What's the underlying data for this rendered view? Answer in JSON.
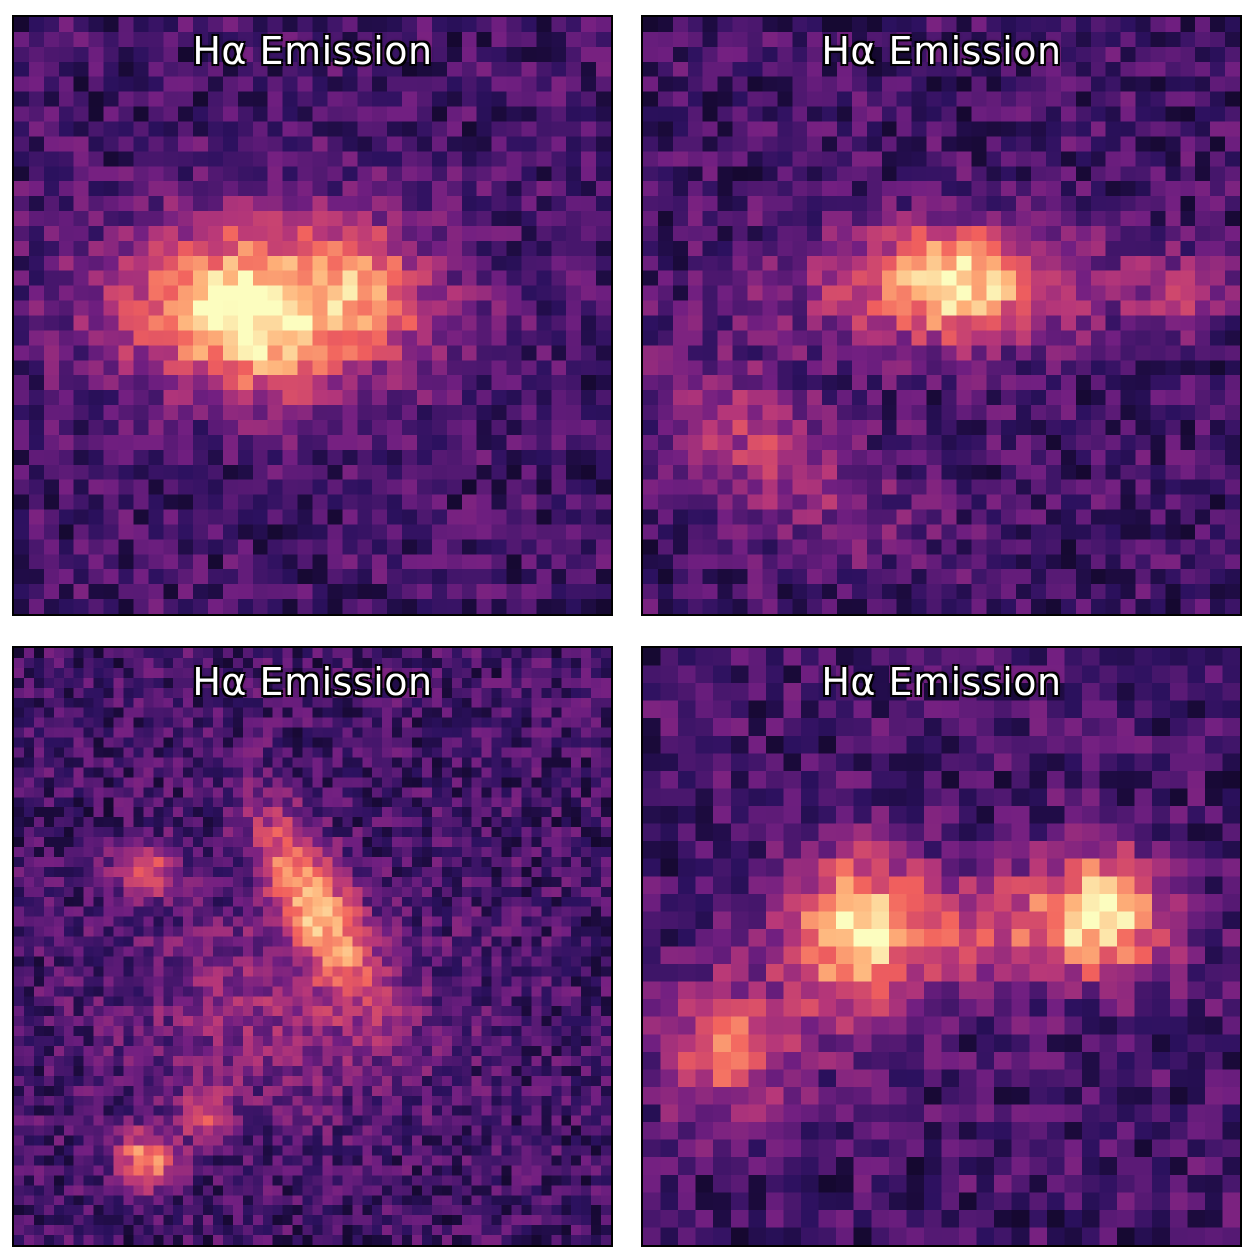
{
  "panels": [
    {
      "title": "Hα Emission"
    },
    {
      "title": "Hα Emission"
    },
    {
      "title": "Hα Emission"
    },
    {
      "title": "Hα Emission"
    }
  ],
  "colormap": [
    "#000004",
    "#2c115f",
    "#721f81",
    "#b73779",
    "#f1605d",
    "#feb078",
    "#fcfdbf"
  ]
}
